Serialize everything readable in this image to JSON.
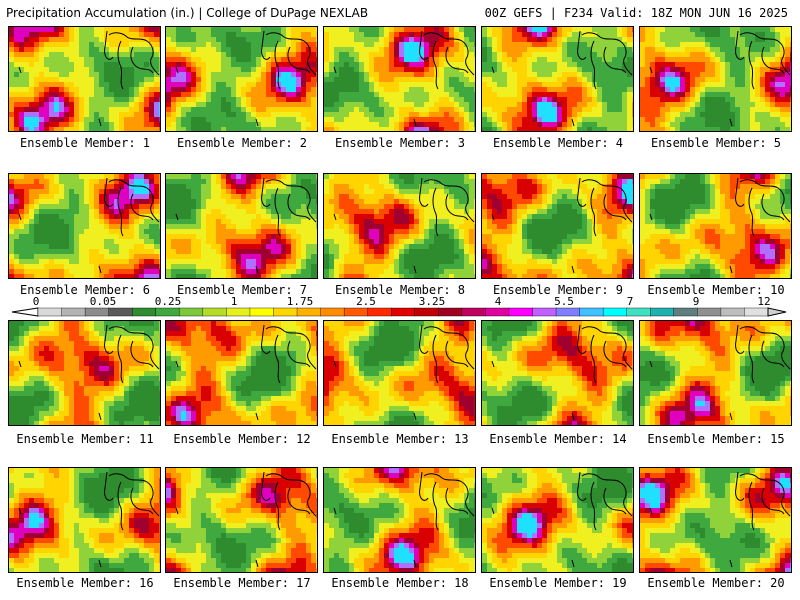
{
  "header": {
    "left": "Precipitation Accumulation (in.) | College of DuPage NEXLAB",
    "right": "00Z GEFS | F234 Valid: 18Z MON JUN 16 2025"
  },
  "members": [
    "Ensemble Member: 1",
    "Ensemble Member: 2",
    "Ensemble Member: 3",
    "Ensemble Member: 4",
    "Ensemble Member: 5",
    "Ensemble Member: 6",
    "Ensemble Member: 7",
    "Ensemble Member: 8",
    "Ensemble Member: 9",
    "Ensemble Member: 10",
    "Ensemble Member: 11",
    "Ensemble Member: 12",
    "Ensemble Member: 13",
    "Ensemble Member: 14",
    "Ensemble Member: 15",
    "Ensemble Member: 16",
    "Ensemble Member: 17",
    "Ensemble Member: 18",
    "Ensemble Member: 19",
    "Ensemble Member: 20"
  ],
  "colorbar": {
    "ticks": [
      "0",
      "0.05",
      "0.25",
      "1",
      "1.75",
      "2.5",
      "3.25",
      "4",
      "5.5",
      "7",
      "9",
      "12"
    ],
    "colors": [
      "#d9d9d9",
      "#b3b3b3",
      "#8c8c8c",
      "#5a5a5a",
      "#2f8c2f",
      "#3fa83f",
      "#7cc83c",
      "#b4dc28",
      "#e6f01e",
      "#ffff00",
      "#ffd700",
      "#ffb000",
      "#ff8c00",
      "#ff5a00",
      "#ff2a00",
      "#e00000",
      "#c00000",
      "#a00020",
      "#c00060",
      "#e000a0",
      "#ff00ff",
      "#c060ff",
      "#8080ff",
      "#40c0ff",
      "#00ffff",
      "#40e0c0",
      "#20b0b0",
      "#608080",
      "#909090",
      "#bdbdbd",
      "#e0e0e0"
    ]
  }
}
